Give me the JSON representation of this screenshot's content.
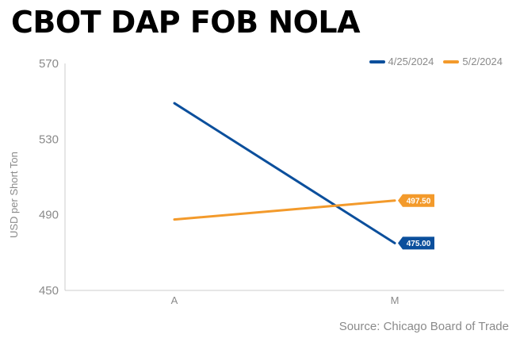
{
  "colors": {
    "series1": "#0b4f9c",
    "series2": "#f39a2b",
    "axis": "#cccccc",
    "text": "#8a8a8a"
  },
  "chart_data": {
    "type": "line",
    "title": "CBOT DAP FOB NOLA",
    "xlabel": "",
    "ylabel": "USD per Short Ton",
    "categories": [
      "A",
      "M"
    ],
    "ylim": [
      450,
      570
    ],
    "yticks": [
      "570",
      "530",
      "490",
      "450"
    ],
    "grid": false,
    "legend_position": "top-right",
    "series": [
      {
        "name": "4/25/2024",
        "values": [
          549.0,
          475.0
        ],
        "end_label": "475.00"
      },
      {
        "name": "5/2/2024",
        "values": [
          487.5,
          497.5
        ],
        "end_label": "497.50"
      }
    ],
    "source": "Source: Chicago Board of Trade"
  }
}
